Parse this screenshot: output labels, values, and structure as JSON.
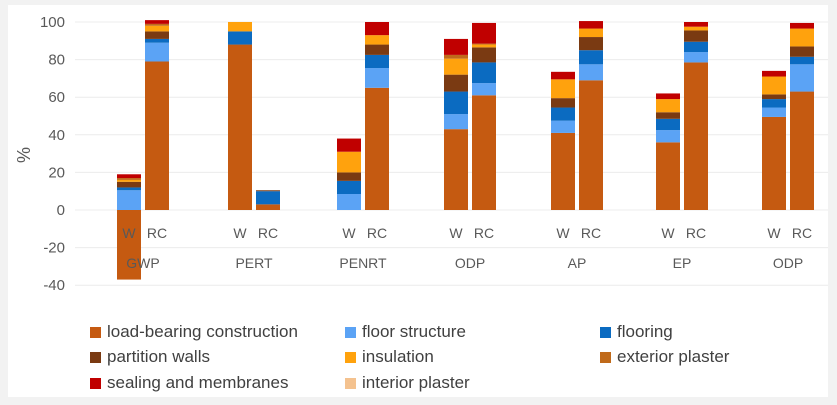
{
  "chart_data": {
    "type": "bar",
    "stacked": true,
    "title": "",
    "xlabel": "",
    "ylabel": "%",
    "ylim": [
      -40,
      100
    ],
    "yticks": [
      100,
      80,
      60,
      40,
      20,
      0,
      -20,
      -40
    ],
    "grid": true,
    "legend_position": "bottom",
    "groups": [
      "GWP",
      "PERT",
      "PENRT",
      "ODP",
      "AP",
      "EP",
      "ODP"
    ],
    "subcategories": [
      "W",
      "RC"
    ],
    "series": [
      {
        "name": "load-bearing construction",
        "color": "#c55a11",
        "values": [
          [
            -37,
            79
          ],
          [
            88,
            3
          ],
          [
            0,
            65
          ],
          [
            43,
            61
          ],
          [
            41,
            69
          ],
          [
            36,
            78.5
          ],
          [
            49.5,
            63
          ]
        ]
      },
      {
        "name": "floor structure",
        "color": "#5ba3f5",
        "values": [
          [
            10.5,
            10
          ],
          [
            0,
            0
          ],
          [
            8.5,
            10.5
          ],
          [
            8,
            6.5
          ],
          [
            6.5,
            8.5
          ],
          [
            6.5,
            5.5
          ],
          [
            5,
            14.5
          ]
        ]
      },
      {
        "name": "flooring",
        "color": "#0b6bc1",
        "values": [
          [
            1.5,
            2
          ],
          [
            7,
            7
          ],
          [
            7,
            7
          ],
          [
            12,
            11
          ],
          [
            7,
            7.5
          ],
          [
            6,
            5.5
          ],
          [
            4.5,
            4
          ]
        ]
      },
      {
        "name": "partition walls",
        "color": "#7a3a12",
        "values": [
          [
            3,
            4
          ],
          [
            0,
            0.5
          ],
          [
            4.5,
            5.5
          ],
          [
            9,
            8
          ],
          [
            5,
            7
          ],
          [
            3.5,
            6
          ],
          [
            2.5,
            5.5
          ]
        ]
      },
      {
        "name": "insulation",
        "color": "#ffa20d",
        "values": [
          [
            1,
            3
          ],
          [
            5,
            0
          ],
          [
            11,
            5
          ],
          [
            8.5,
            1.5
          ],
          [
            10,
            4.5
          ],
          [
            7,
            2
          ],
          [
            9.5,
            9.5
          ]
        ]
      },
      {
        "name": "exterior plaster",
        "color": "#c06a1a",
        "values": [
          [
            1,
            1
          ],
          [
            0,
            0
          ],
          [
            0,
            0
          ],
          [
            2,
            0.5
          ],
          [
            0,
            0
          ],
          [
            0,
            0
          ],
          [
            0,
            0
          ]
        ]
      },
      {
        "name": "sealing and membranes",
        "color": "#c00000",
        "values": [
          [
            2,
            2
          ],
          [
            0,
            0
          ],
          [
            7,
            7
          ],
          [
            8.5,
            11
          ],
          [
            4,
            4
          ],
          [
            3,
            2.5
          ],
          [
            3,
            3
          ]
        ]
      },
      {
        "name": "interior plaster",
        "color": "#f4c28f",
        "values": [
          [
            0,
            0
          ],
          [
            0,
            0
          ],
          [
            0,
            0
          ],
          [
            0,
            0
          ],
          [
            0,
            0
          ],
          [
            0,
            0
          ],
          [
            0,
            0
          ]
        ]
      }
    ]
  }
}
